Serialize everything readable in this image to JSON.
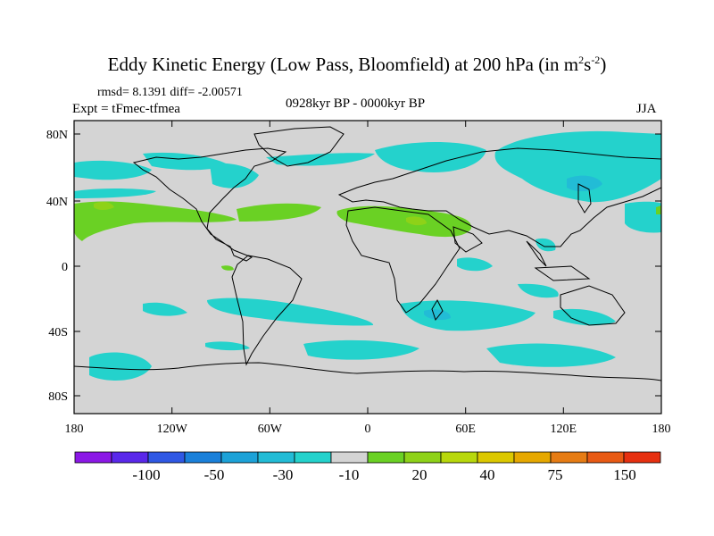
{
  "title": {
    "main": "Eddy Kinetic Energy (Low Pass, Bloomfield) at 200 hPa (in m",
    "sup1": "2",
    "mid": "s",
    "sup2": "-2",
    "end": ")"
  },
  "stats": "rmsd= 8.1391 diff= -2.00571",
  "expt": "Expt = tFmec-tfmea",
  "period": "0928kyr BP - 0000kyr BP",
  "season": "JJA",
  "map": {
    "lat_labels": [
      "80N",
      "40N",
      "0",
      "40S",
      "80S"
    ],
    "lon_labels": [
      "180",
      "120W",
      "60W",
      "0",
      "60E",
      "120E",
      "180"
    ],
    "land_color": "#d4d4d4",
    "coast_color": "#000000"
  },
  "colorbar": {
    "colors": [
      "#8b18e6",
      "#5a28ea",
      "#2f58e4",
      "#1a80da",
      "#1ca2d8",
      "#22bcd6",
      "#24d2cc",
      "#d4d4d4",
      "#6ad124",
      "#8ed218",
      "#b8d80c",
      "#dcc800",
      "#e6a800",
      "#e67c14",
      "#e85a14",
      "#e63010"
    ],
    "labels": [
      "-100",
      "-50",
      "-30",
      "-10",
      "20",
      "40",
      "75",
      "150"
    ]
  }
}
